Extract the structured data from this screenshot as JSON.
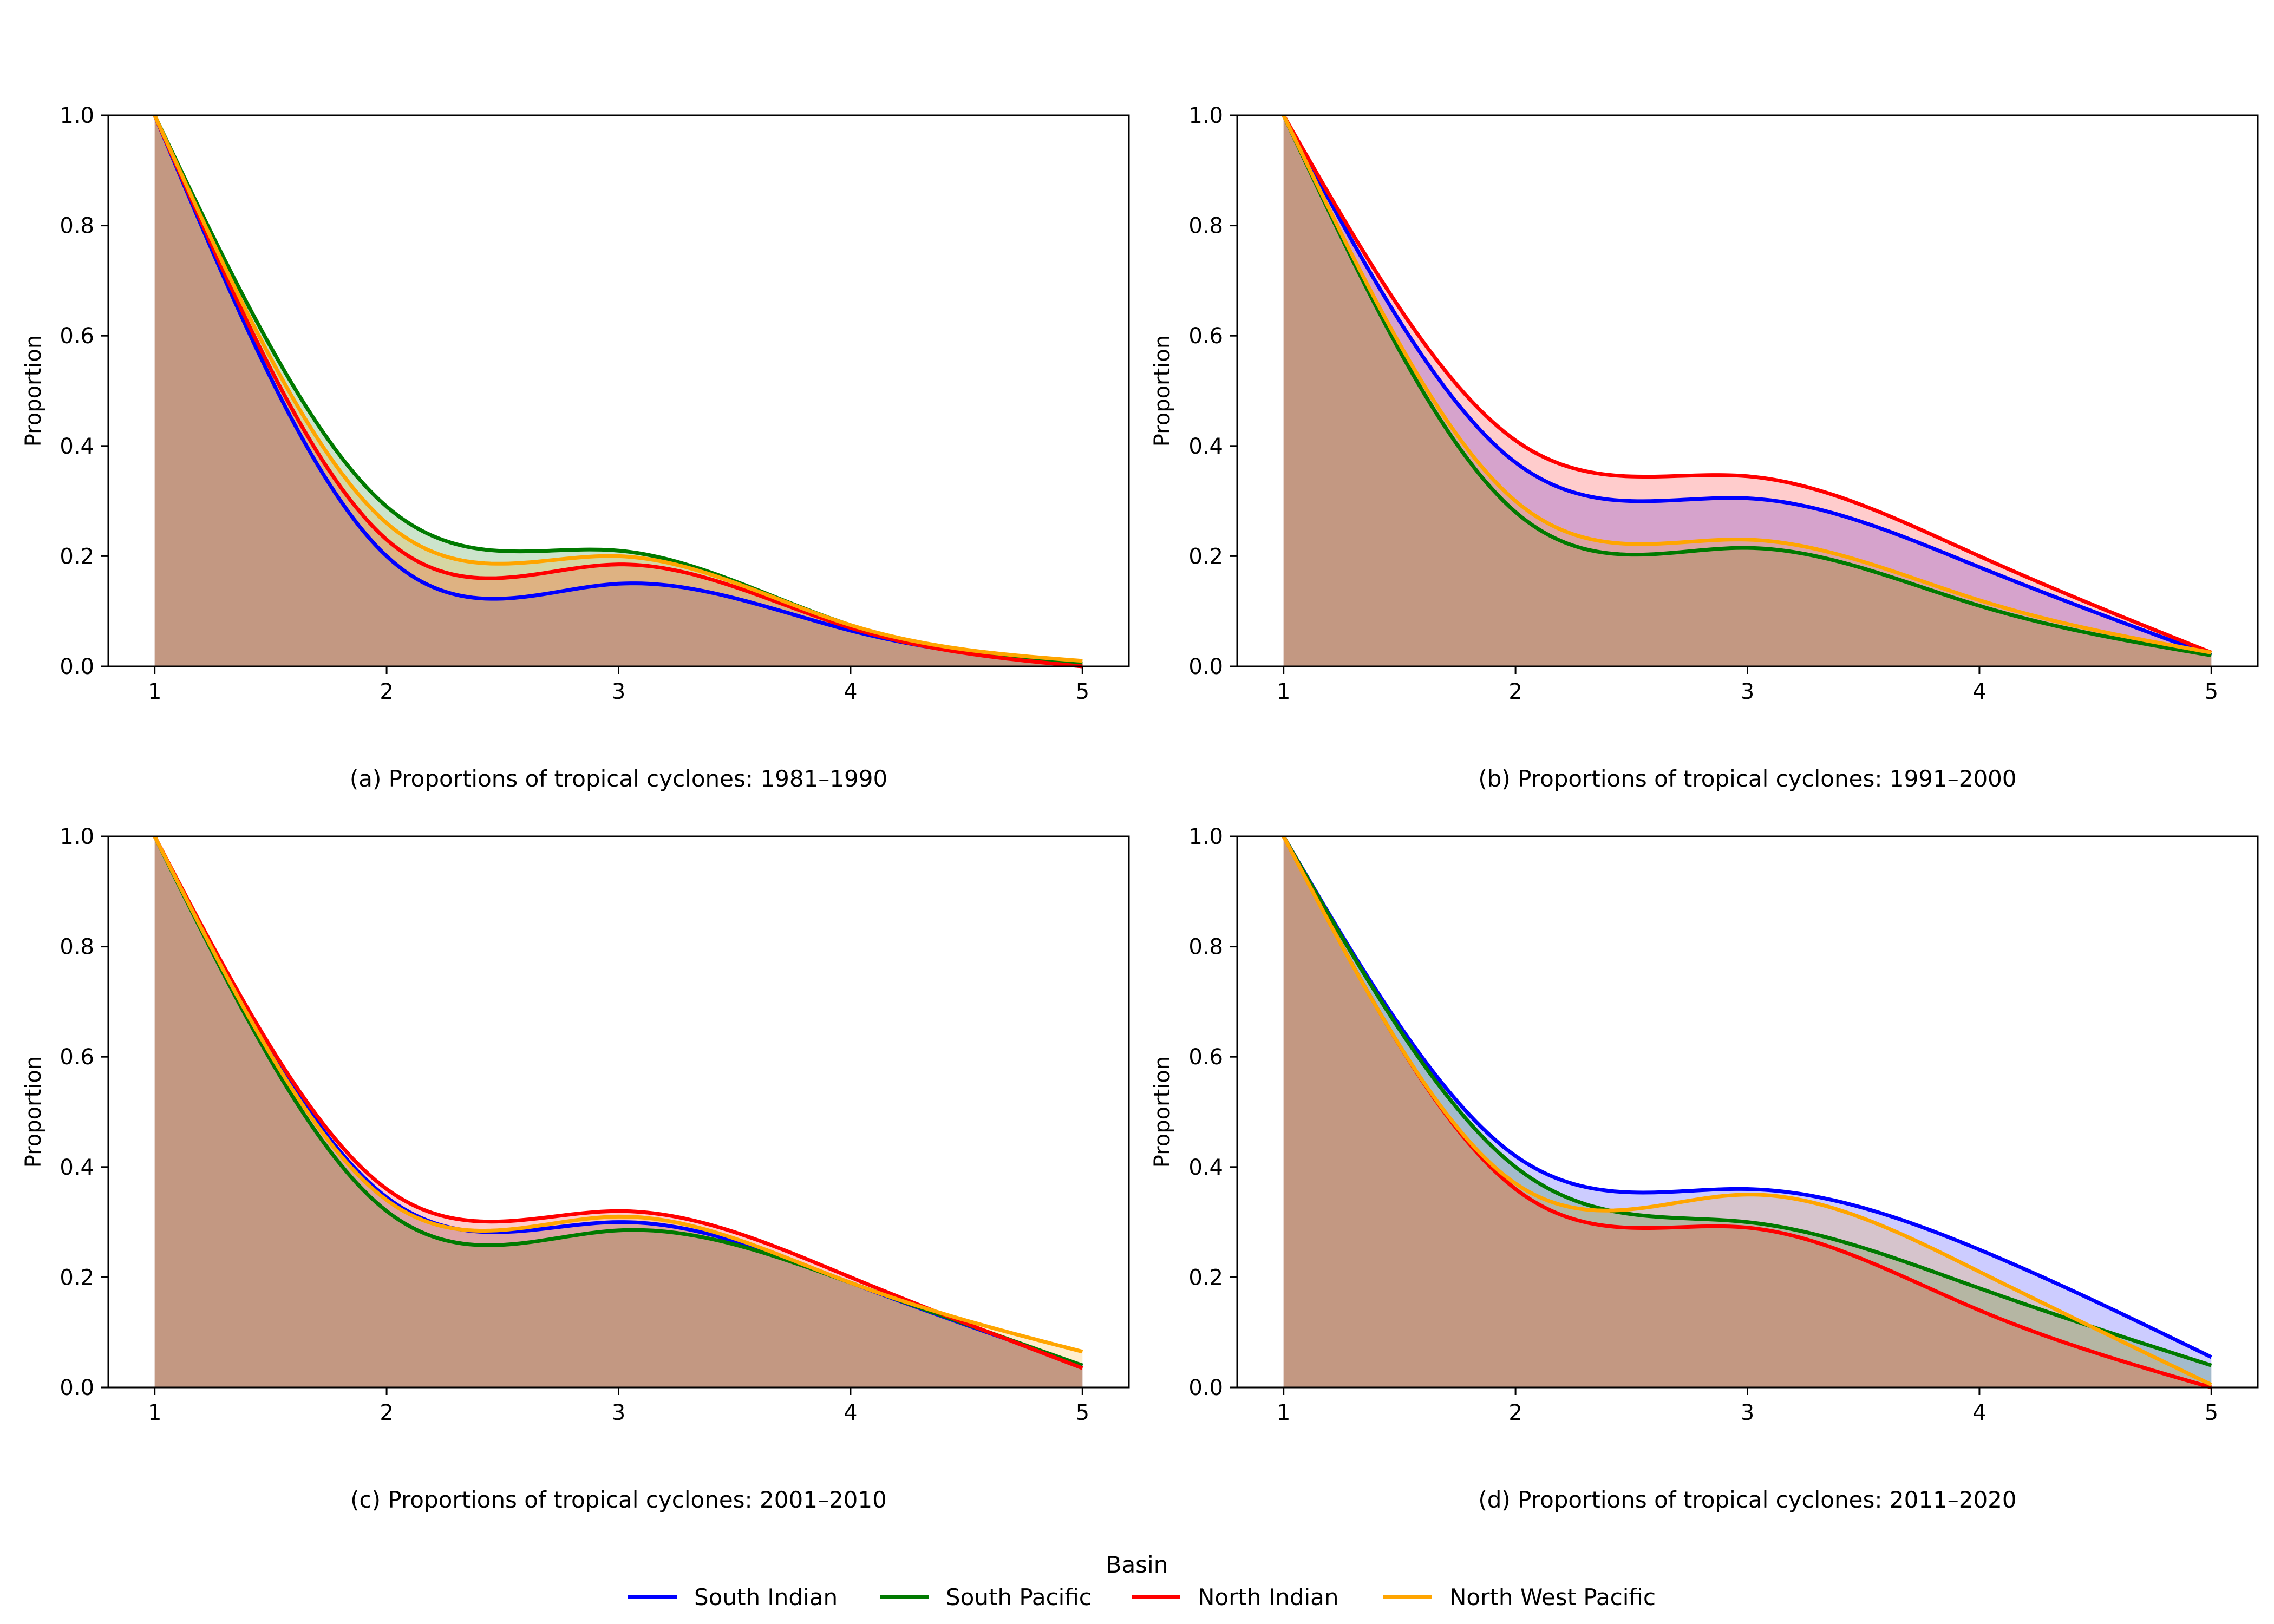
{
  "colors": {
    "South Indian": "#0000ff",
    "South Pacific": "#007a00",
    "North Indian": "#ff0000",
    "North West Pacific": "#ffa500"
  },
  "legend": {
    "title": "Basin",
    "entries": [
      "South Indian",
      "South Pacific",
      "North Indian",
      "North West Pacific"
    ]
  },
  "chart_data": [
    {
      "type": "area",
      "title": "(a) Proportions of tropical cyclones: 1981–1990",
      "ylabel": "Proportion",
      "xlabel": "",
      "x": [
        1,
        2,
        3,
        4,
        5
      ],
      "xlim": [
        0.8,
        5.2
      ],
      "ylim": [
        0,
        1
      ],
      "xticks": [
        "1",
        "2",
        "3",
        "4",
        "5"
      ],
      "yticks": [
        "0.0",
        "0.2",
        "0.4",
        "0.6",
        "0.8",
        "1.0"
      ],
      "series": [
        {
          "name": "South Indian",
          "values": [
            1.0,
            0.2,
            0.15,
            0.065,
            0.0
          ]
        },
        {
          "name": "South Pacific",
          "values": [
            1.0,
            0.29,
            0.21,
            0.075,
            0.005
          ]
        },
        {
          "name": "North Indian",
          "values": [
            1.0,
            0.23,
            0.185,
            0.07,
            0.0
          ]
        },
        {
          "name": "North West Pacific",
          "values": [
            1.0,
            0.26,
            0.2,
            0.075,
            0.01
          ]
        }
      ]
    },
    {
      "type": "area",
      "title": "(b) Proportions of tropical cyclones: 1991–2000",
      "ylabel": "Proportion",
      "xlabel": "",
      "x": [
        1,
        2,
        3,
        4,
        5
      ],
      "xlim": [
        0.8,
        5.2
      ],
      "ylim": [
        0,
        1
      ],
      "xticks": [
        "1",
        "2",
        "3",
        "4",
        "5"
      ],
      "yticks": [
        "0.0",
        "0.2",
        "0.4",
        "0.6",
        "0.8",
        "1.0"
      ],
      "series": [
        {
          "name": "South Indian",
          "values": [
            1.0,
            0.37,
            0.305,
            0.18,
            0.02
          ]
        },
        {
          "name": "South Pacific",
          "values": [
            1.0,
            0.28,
            0.215,
            0.11,
            0.02
          ]
        },
        {
          "name": "North Indian",
          "values": [
            1.0,
            0.41,
            0.345,
            0.2,
            0.025
          ]
        },
        {
          "name": "North West Pacific",
          "values": [
            1.0,
            0.3,
            0.23,
            0.12,
            0.025
          ]
        }
      ]
    },
    {
      "type": "area",
      "title": "(c) Proportions of tropical cyclones: 2001–2010",
      "ylabel": "Proportion",
      "xlabel": "",
      "x": [
        1,
        2,
        3,
        4,
        5
      ],
      "xlim": [
        0.8,
        5.2
      ],
      "ylim": [
        0,
        1
      ],
      "xticks": [
        "1",
        "2",
        "3",
        "4",
        "5"
      ],
      "yticks": [
        "0.0",
        "0.2",
        "0.4",
        "0.6",
        "0.8",
        "1.0"
      ],
      "series": [
        {
          "name": "South Indian",
          "values": [
            1.0,
            0.345,
            0.3,
            0.19,
            0.04
          ]
        },
        {
          "name": "South Pacific",
          "values": [
            1.0,
            0.32,
            0.285,
            0.19,
            0.04
          ]
        },
        {
          "name": "North Indian",
          "values": [
            1.0,
            0.36,
            0.32,
            0.2,
            0.035
          ]
        },
        {
          "name": "North West Pacific",
          "values": [
            1.0,
            0.34,
            0.31,
            0.19,
            0.065
          ]
        }
      ]
    },
    {
      "type": "area",
      "title": "(d) Proportions of tropical cyclones: 2011–2020",
      "ylabel": "Proportion",
      "xlabel": "",
      "x": [
        1,
        2,
        3,
        4,
        5
      ],
      "xlim": [
        0.8,
        5.2
      ],
      "ylim": [
        0,
        1
      ],
      "xticks": [
        "1",
        "2",
        "3",
        "4",
        "5"
      ],
      "yticks": [
        "0.0",
        "0.2",
        "0.4",
        "0.6",
        "0.8",
        "1.0"
      ],
      "series": [
        {
          "name": "South Indian",
          "values": [
            1.0,
            0.42,
            0.36,
            0.25,
            0.055
          ]
        },
        {
          "name": "South Pacific",
          "values": [
            1.0,
            0.4,
            0.3,
            0.18,
            0.04
          ]
        },
        {
          "name": "North Indian",
          "values": [
            1.0,
            0.36,
            0.29,
            0.14,
            0.0
          ]
        },
        {
          "name": "North West Pacific",
          "values": [
            1.0,
            0.37,
            0.35,
            0.21,
            0.005
          ]
        }
      ]
    }
  ]
}
